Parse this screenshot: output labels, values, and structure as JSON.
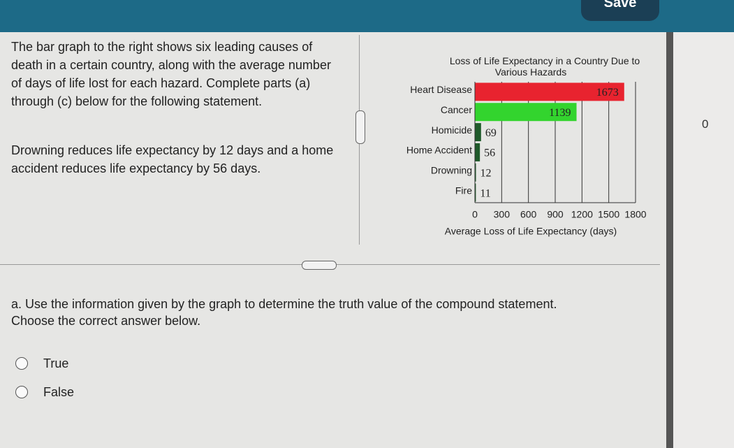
{
  "header": {
    "save": "Save"
  },
  "side_value": "0",
  "intro": "The bar graph to the right shows six leading causes of death in a certain country, along with the average number of days of life lost for each hazard. Complete parts (a) through (c) below for the following statement.",
  "statement": "Drowning reduces life expectancy by 12 days and a home accident reduces life expectancy by 56 days.",
  "chart_data": {
    "type": "hbar",
    "title": "Loss of Life Expectancy in a Country Due to Various Hazards",
    "categories": [
      "Heart Disease",
      "Cancer",
      "Homicide",
      "Home Accident",
      "Drowning",
      "Fire"
    ],
    "values": [
      1673,
      1139,
      69,
      56,
      12,
      11
    ],
    "colors": [
      "#e8232f",
      "#33d42e",
      "#1f5a2a",
      "#1f5a2a",
      "#1f5a2a",
      "#1f5a2a"
    ],
    "xlim": [
      0,
      1800
    ],
    "xticks": [
      0,
      300,
      600,
      900,
      1200,
      1500,
      1800
    ],
    "xlabel": "Average Loss of Life Expectancy (days)",
    "grid": true
  },
  "question": {
    "prompt": "a. Use the information given by the graph to determine the truth value of the compound statement.",
    "instruction": "Choose the correct answer below.",
    "options": [
      "True",
      "False"
    ]
  }
}
